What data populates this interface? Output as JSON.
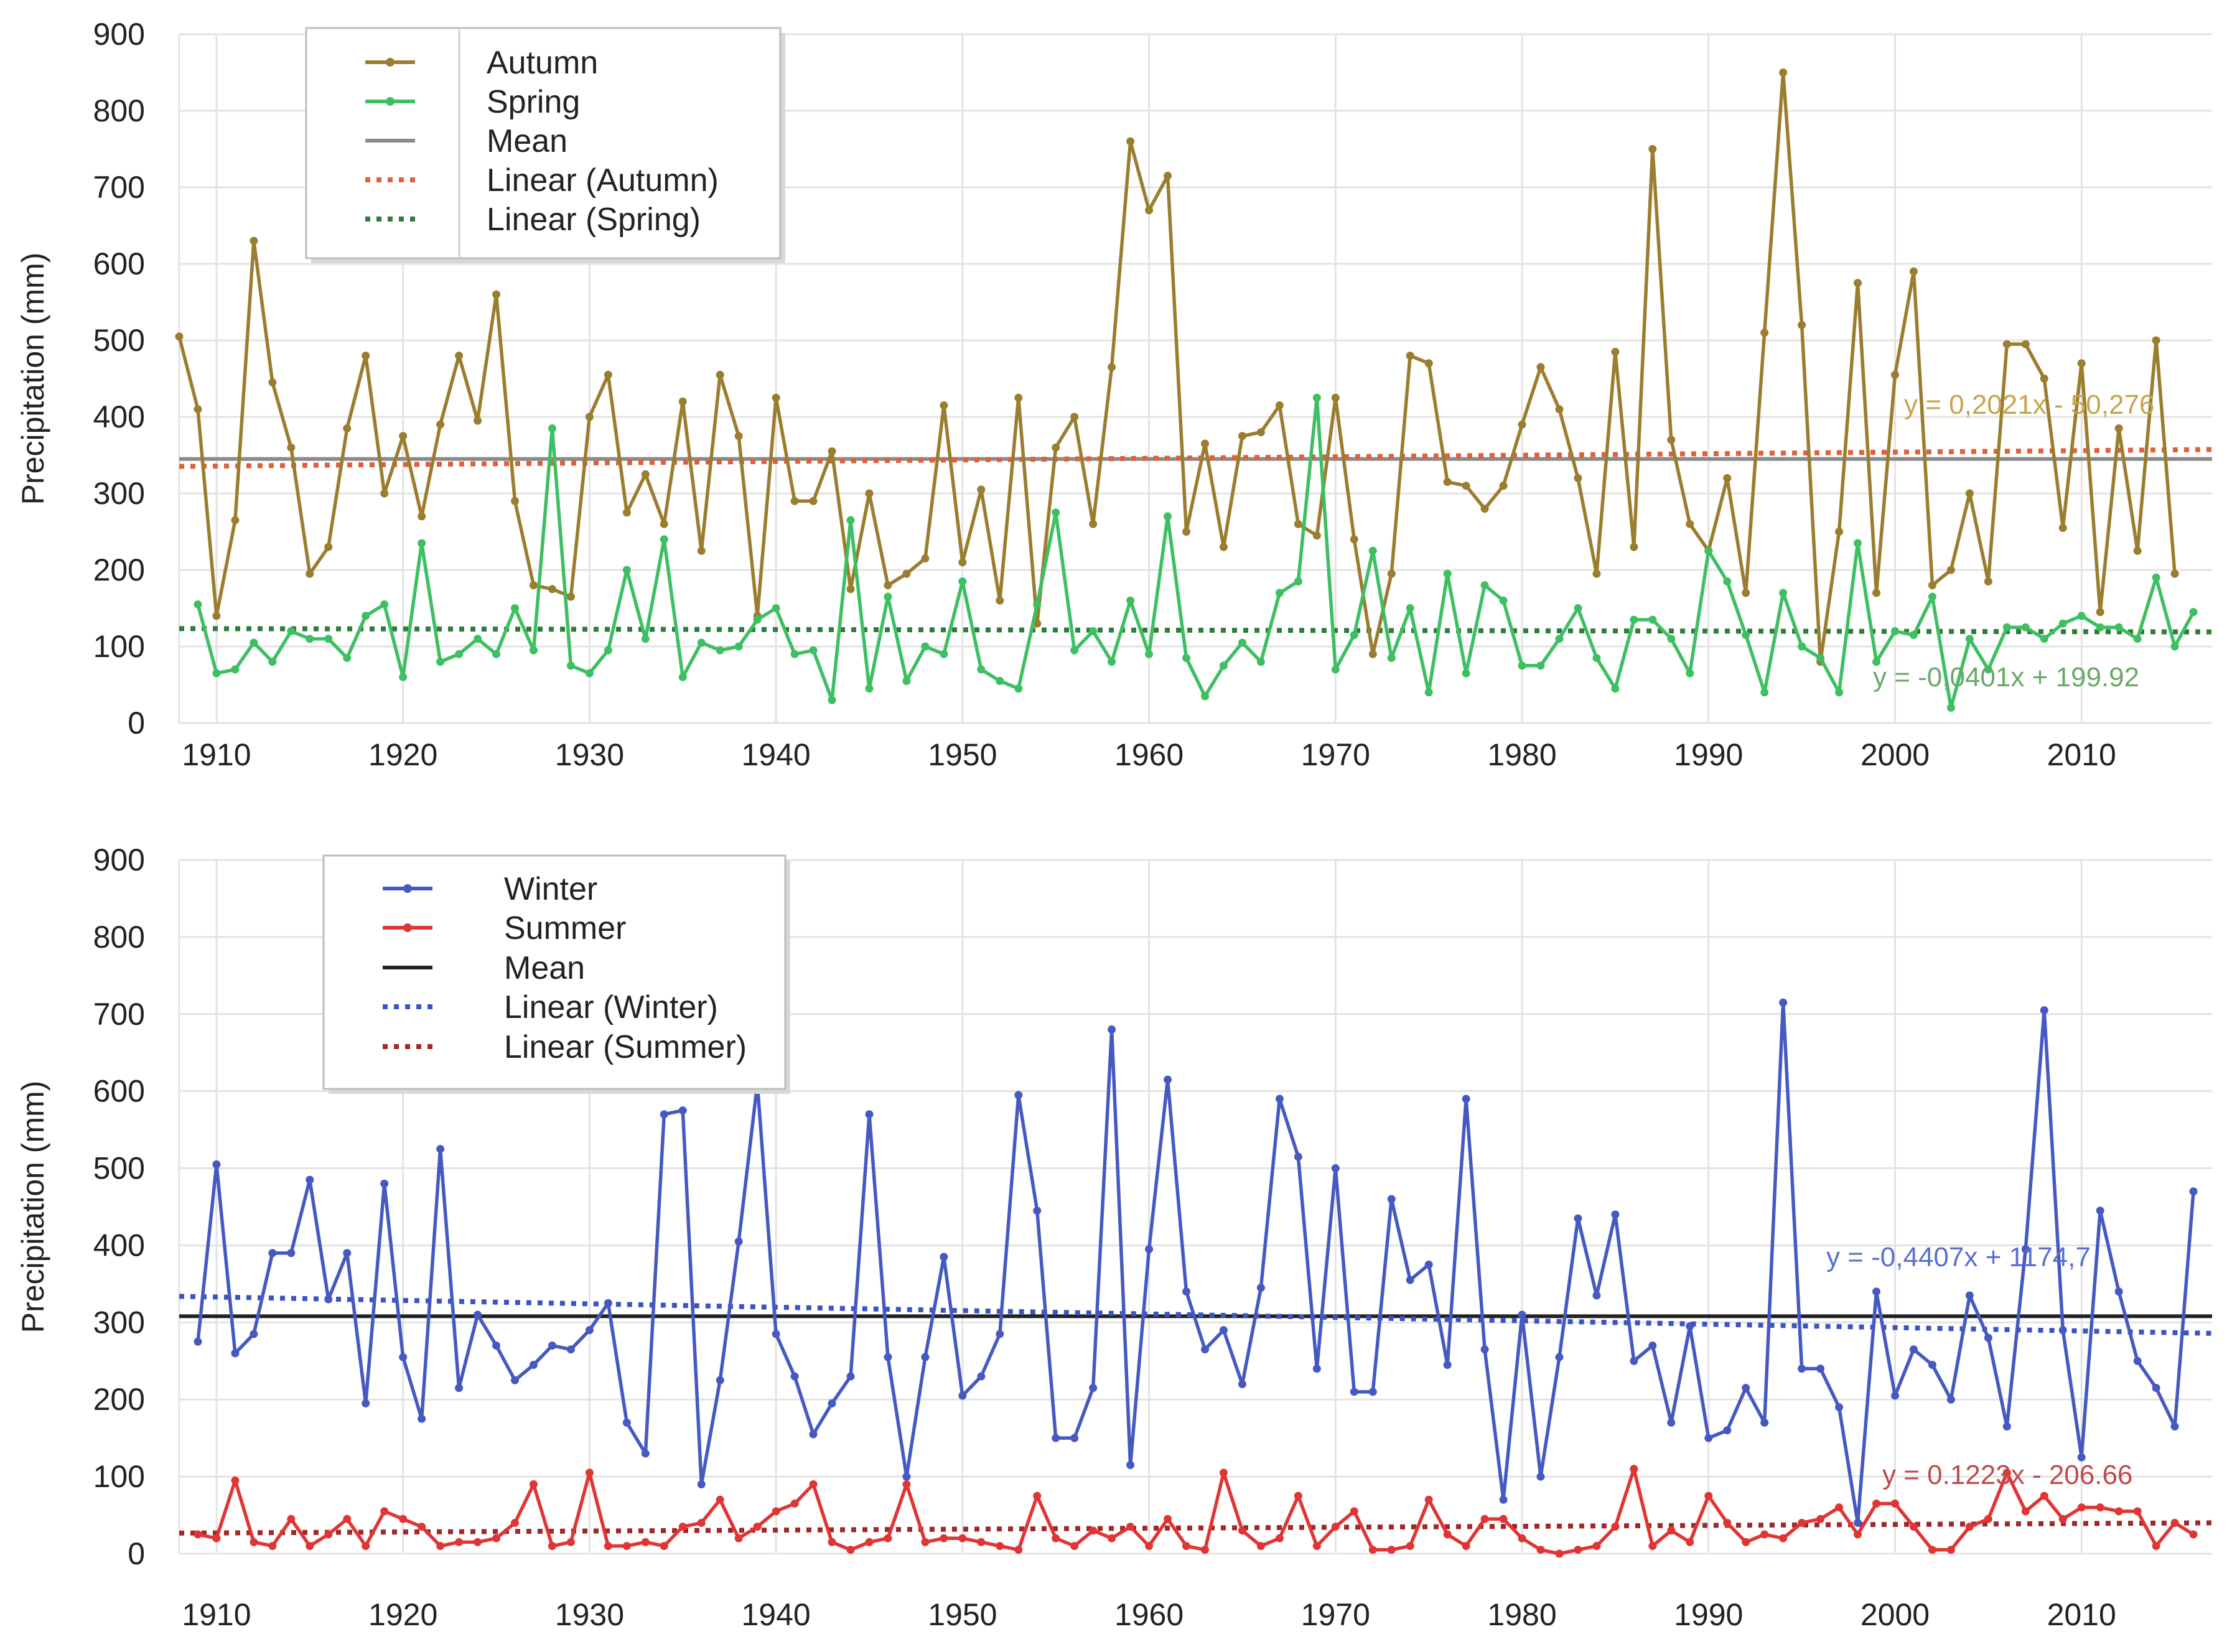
{
  "chart_data": [
    {
      "type": "line",
      "title": "",
      "xlabel": "",
      "ylabel": "Precipitation (mm)",
      "xlim": [
        1908,
        2017
      ],
      "ylim": [
        0,
        900
      ],
      "xticks": [
        1910,
        1920,
        1930,
        1940,
        1950,
        1960,
        1970,
        1980,
        1990,
        2000,
        2010
      ],
      "yticks": [
        0,
        100,
        200,
        300,
        400,
        500,
        600,
        700,
        800,
        900
      ],
      "grid": true,
      "legend_position": "top-left",
      "legend": [
        "Autumn",
        "Spring",
        "Mean",
        "Linear (Autumn)",
        "Linear (Spring)"
      ],
      "x_start": 1908,
      "series": [
        {
          "name": "Autumn",
          "color": "#9a7d2e",
          "values": [
            505,
            410,
            140,
            265,
            630,
            445,
            360,
            195,
            230,
            385,
            480,
            300,
            375,
            270,
            390,
            480,
            395,
            560,
            290,
            180,
            175,
            165,
            400,
            455,
            275,
            325,
            260,
            420,
            225,
            455,
            375,
            140,
            425,
            290,
            290,
            355,
            175,
            300,
            180,
            195,
            215,
            415,
            210,
            305,
            160,
            425,
            130,
            360,
            400,
            260,
            465,
            760,
            670,
            715,
            250,
            365,
            230,
            375,
            380,
            415,
            260,
            245,
            425,
            240,
            90,
            195,
            480,
            470,
            315,
            310,
            280,
            310,
            390,
            465,
            410,
            320,
            195,
            485,
            230,
            750,
            370,
            260,
            225,
            320,
            170,
            510,
            850,
            520,
            80,
            250,
            575,
            170,
            455,
            590,
            180,
            200,
            300,
            185,
            495,
            495,
            450,
            255,
            470,
            145,
            385,
            225,
            500,
            195
          ]
        },
        {
          "name": "Spring",
          "color": "#3dbf62",
          "values": [
            null,
            155,
            65,
            70,
            105,
            80,
            120,
            110,
            110,
            85,
            140,
            155,
            60,
            235,
            80,
            90,
            110,
            90,
            150,
            95,
            385,
            75,
            65,
            95,
            200,
            110,
            240,
            60,
            105,
            95,
            100,
            135,
            150,
            90,
            95,
            30,
            265,
            45,
            165,
            55,
            100,
            90,
            185,
            70,
            55,
            45,
            155,
            275,
            95,
            120,
            80,
            160,
            90,
            270,
            85,
            35,
            75,
            105,
            80,
            170,
            185,
            425,
            70,
            115,
            225,
            85,
            150,
            40,
            195,
            65,
            180,
            160,
            75,
            75,
            110,
            150,
            85,
            45,
            135,
            135,
            110,
            65,
            225,
            185,
            115,
            40,
            170,
            100,
            85,
            40,
            235,
            80,
            120,
            115,
            165,
            20,
            110,
            70,
            125,
            125,
            110,
            130,
            140,
            125,
            125,
            110,
            190,
            100,
            145
          ]
        },
        {
          "name": "Mean",
          "color": "#8a8a8a",
          "kind": "constant",
          "value": 345
        },
        {
          "name": "Linear (Autumn)",
          "color": "#e0603a",
          "kind": "trend",
          "slope": 0.2021,
          "intercept": -50.276
        },
        {
          "name": "Linear (Spring)",
          "color": "#2e7d3a",
          "kind": "trend",
          "slope": -0.0401,
          "intercept": 199.92
        }
      ],
      "annotations": [
        {
          "text": "y = 0,2021x - 50,276",
          "color": "#c9a34a"
        },
        {
          "text": "y = -0,0401x + 199.92",
          "color": "#6aa86a"
        }
      ]
    },
    {
      "type": "line",
      "title": "",
      "xlabel": "",
      "ylabel": "Precipitation (mm)",
      "xlim": [
        1908,
        2017
      ],
      "ylim": [
        0,
        900
      ],
      "xticks": [
        1910,
        1920,
        1930,
        1940,
        1950,
        1960,
        1970,
        1980,
        1990,
        2000,
        2010
      ],
      "yticks": [
        0,
        100,
        200,
        300,
        400,
        500,
        600,
        700,
        800,
        900
      ],
      "grid": true,
      "legend_position": "top-left",
      "legend": [
        "Winter",
        "Summer",
        "Mean",
        "Linear (Winter)",
        "Linear (Summer)"
      ],
      "x_start": 1908,
      "series": [
        {
          "name": "Winter",
          "color": "#4659c0",
          "values": [
            null,
            275,
            505,
            260,
            285,
            390,
            390,
            485,
            330,
            390,
            195,
            480,
            255,
            175,
            525,
            215,
            310,
            270,
            225,
            245,
            270,
            265,
            290,
            325,
            170,
            130,
            570,
            575,
            90,
            225,
            405,
            610,
            285,
            230,
            155,
            195,
            230,
            570,
            255,
            100,
            255,
            385,
            205,
            230,
            285,
            595,
            445,
            150,
            150,
            215,
            680,
            115,
            395,
            615,
            340,
            265,
            290,
            220,
            345,
            590,
            515,
            240,
            500,
            210,
            210,
            460,
            355,
            375,
            245,
            590,
            265,
            70,
            310,
            100,
            255,
            435,
            335,
            440,
            250,
            270,
            170,
            295,
            150,
            160,
            215,
            170,
            715,
            240,
            240,
            190,
            40,
            340,
            205,
            265,
            245,
            200,
            335,
            280,
            165,
            395,
            705,
            290,
            125,
            445,
            340,
            250,
            215,
            165,
            470
          ]
        },
        {
          "name": "Summer",
          "color": "#e03535",
          "values": [
            null,
            25,
            20,
            95,
            15,
            10,
            45,
            10,
            25,
            45,
            10,
            55,
            45,
            35,
            10,
            15,
            15,
            20,
            40,
            90,
            10,
            15,
            105,
            10,
            10,
            15,
            10,
            35,
            40,
            70,
            20,
            35,
            55,
            65,
            90,
            15,
            5,
            15,
            20,
            90,
            15,
            20,
            20,
            15,
            10,
            5,
            75,
            20,
            10,
            30,
            20,
            35,
            10,
            45,
            10,
            5,
            105,
            30,
            10,
            20,
            75,
            10,
            35,
            55,
            5,
            5,
            10,
            70,
            25,
            10,
            45,
            45,
            20,
            5,
            0,
            5,
            10,
            35,
            110,
            10,
            30,
            15,
            75,
            40,
            15,
            25,
            20,
            40,
            45,
            60,
            25,
            65,
            65,
            35,
            5,
            5,
            35,
            45,
            105,
            55,
            75,
            45,
            60,
            60,
            55,
            55,
            10,
            40,
            25
          ]
        },
        {
          "name": "Mean",
          "color": "#222222",
          "kind": "constant",
          "value": 308
        },
        {
          "name": "Linear (Winter)",
          "color": "#3a55c0",
          "kind": "trend",
          "slope": -0.4407,
          "intercept": 1174.7
        },
        {
          "name": "Linear (Summer)",
          "color": "#a02828",
          "kind": "trend",
          "slope": 0.1223,
          "intercept": -206.66
        }
      ],
      "annotations": [
        {
          "text": "y = -0,4407x + 1174,7",
          "color": "#5a70d0"
        },
        {
          "text": "y = 0.1223x - 206.66",
          "color": "#c04a4a"
        }
      ]
    }
  ]
}
